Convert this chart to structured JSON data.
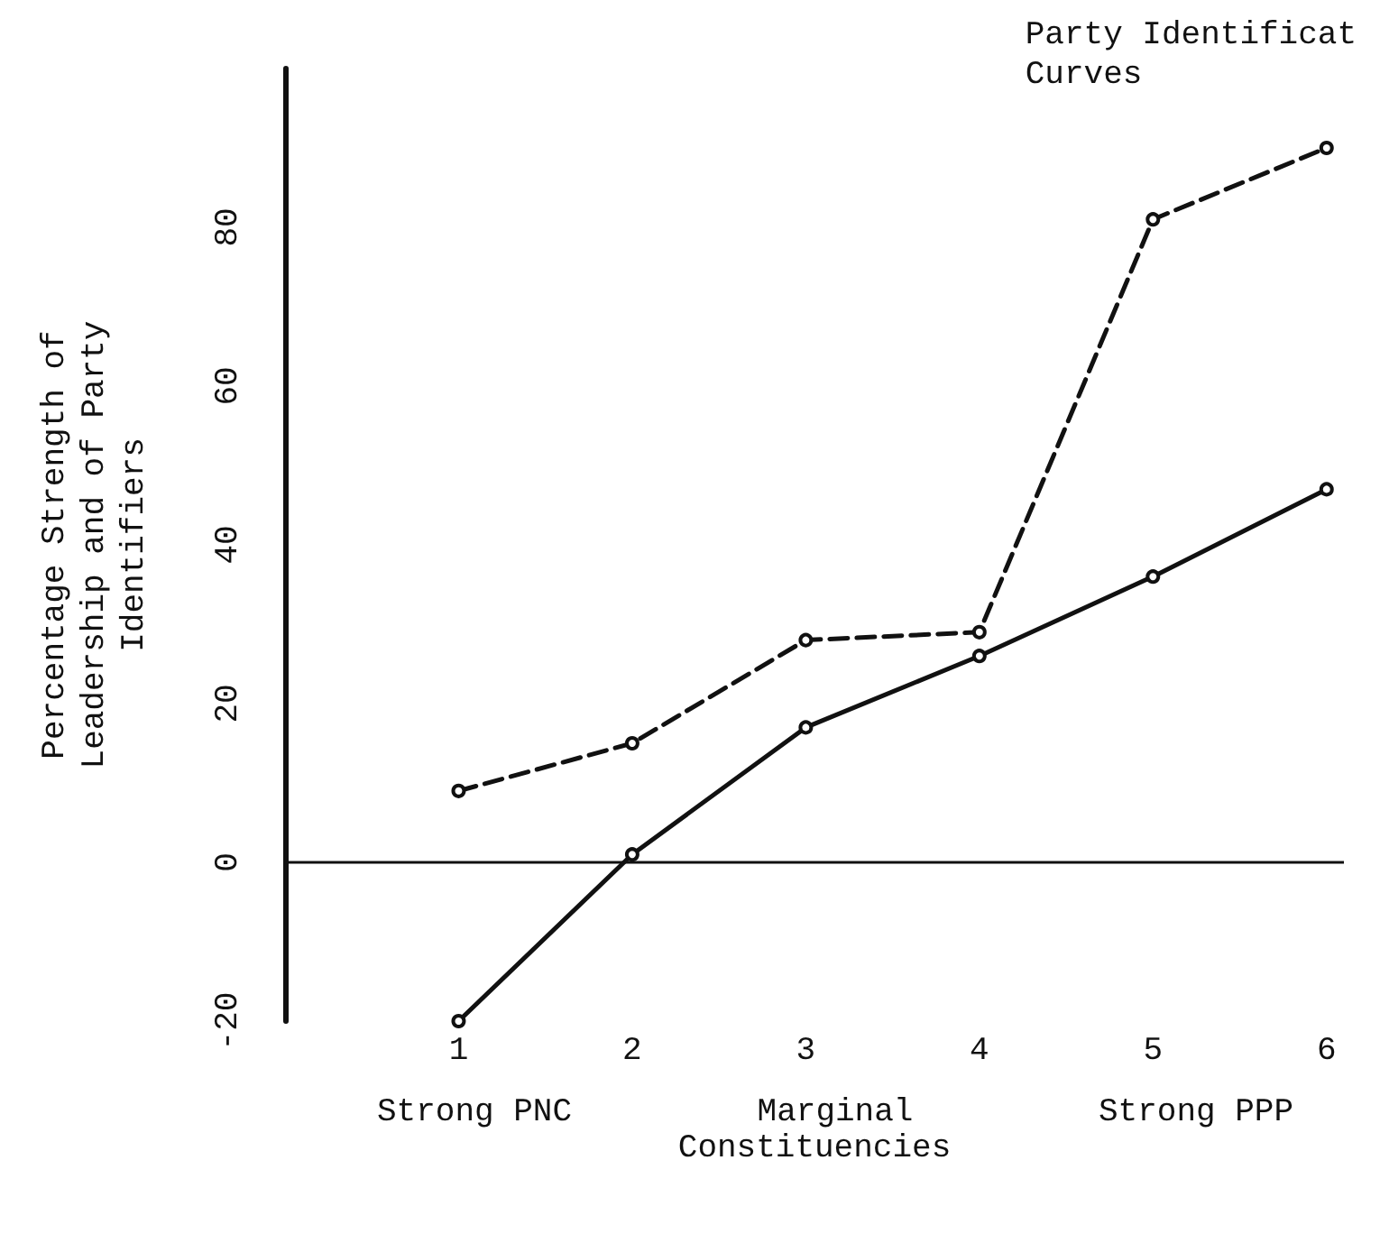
{
  "chart_data": {
    "type": "line",
    "title": "Party Identificat\nCurves",
    "xlabel": "Constituencies",
    "ylabel": "Percentage Strength of\nLeadership and of Party\nIdentifiers",
    "x": [
      1,
      2,
      3,
      4,
      5,
      6
    ],
    "xlim": [
      0,
      6.1
    ],
    "xticks": [
      1,
      2,
      3,
      4,
      5,
      6
    ],
    "ylim": [
      -20,
      100
    ],
    "yticks": [
      -20,
      0,
      20,
      40,
      60,
      80
    ],
    "series": [
      {
        "color": "#111111",
        "line_style": "dashed",
        "values": [
          9,
          15,
          28,
          29,
          81,
          90
        ]
      },
      {
        "color": "#111111",
        "line_style": "solid",
        "values": [
          -20,
          1,
          17,
          26,
          36,
          47
        ]
      }
    ],
    "annotations": [
      "Strong PNC",
      "Marginal",
      "Strong PPP"
    ],
    "ref_lines": [
      {
        "axis": "y",
        "value": 0,
        "color": "#111111",
        "line_style": "solid"
      }
    ],
    "marker": "circle",
    "grid": false
  }
}
